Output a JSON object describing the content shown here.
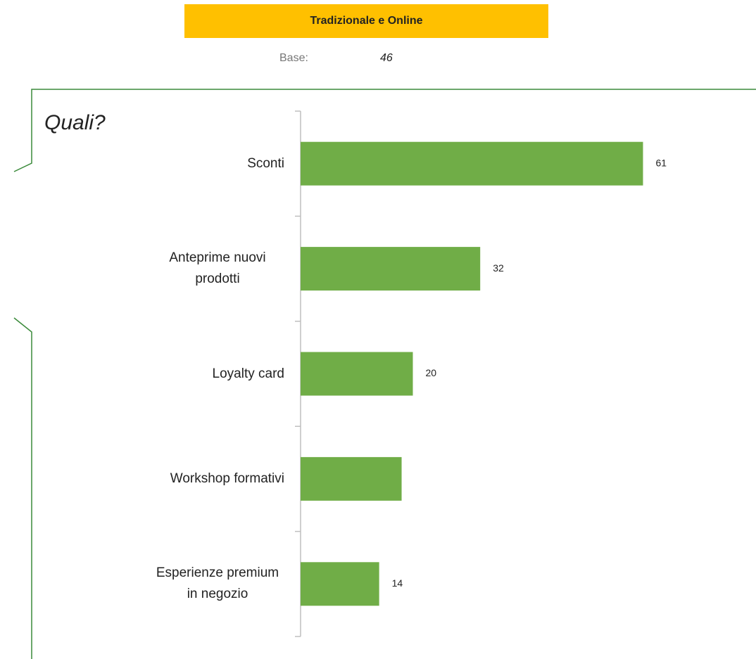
{
  "header": {
    "title": "Tradizionale e Online",
    "base_label": "Base:",
    "base_value": "46"
  },
  "chart_data": {
    "type": "bar",
    "orientation": "horizontal",
    "title": "Quali?",
    "categories": [
      "Sconti",
      "Anteprime nuovi prodotti",
      "Loyalty card",
      "Workshop formativi",
      "Esperienze premium in negozio"
    ],
    "values": [
      61,
      32,
      20,
      18,
      14
    ],
    "value_labels": [
      "61",
      "32",
      "20",
      null,
      "14"
    ],
    "color": "#70ad47",
    "xlim": [
      0,
      80
    ]
  }
}
